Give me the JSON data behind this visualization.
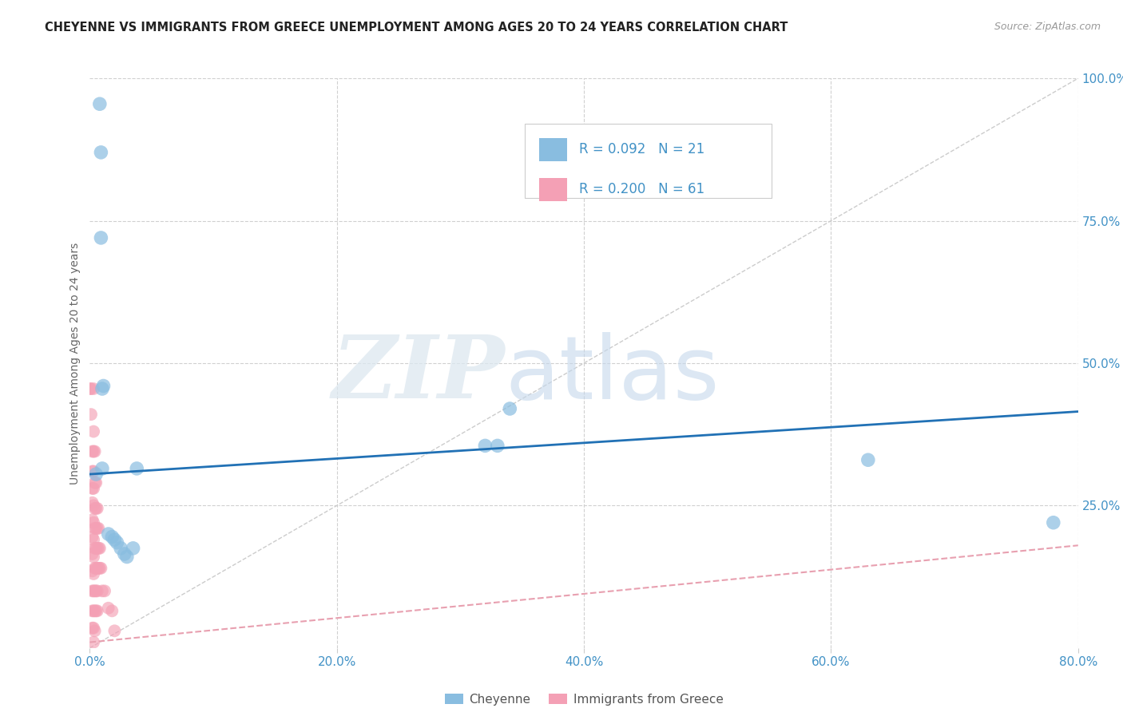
{
  "title": "CHEYENNE VS IMMIGRANTS FROM GREECE UNEMPLOYMENT AMONG AGES 20 TO 24 YEARS CORRELATION CHART",
  "source": "Source: ZipAtlas.com",
  "ylabel": "Unemployment Among Ages 20 to 24 years",
  "xlim": [
    0.0,
    0.8
  ],
  "ylim": [
    0.0,
    1.0
  ],
  "cheyenne_color": "#89bde0",
  "immigrants_color": "#f4a0b5",
  "cheyenne_label": "Cheyenne",
  "immigrants_label": "Immigrants from Greece",
  "R_cheyenne": "0.092",
  "N_cheyenne": "21",
  "R_immigrants": "0.200",
  "N_immigrants": "61",
  "legend_text_color": "#4292c6",
  "cheyenne_points": [
    [
      0.008,
      0.955
    ],
    [
      0.009,
      0.87
    ],
    [
      0.009,
      0.72
    ],
    [
      0.01,
      0.455
    ],
    [
      0.011,
      0.46
    ],
    [
      0.01,
      0.315
    ],
    [
      0.015,
      0.2
    ],
    [
      0.018,
      0.195
    ],
    [
      0.02,
      0.19
    ],
    [
      0.022,
      0.185
    ],
    [
      0.025,
      0.175
    ],
    [
      0.028,
      0.165
    ],
    [
      0.03,
      0.16
    ],
    [
      0.035,
      0.175
    ],
    [
      0.038,
      0.315
    ],
    [
      0.005,
      0.305
    ],
    [
      0.32,
      0.355
    ],
    [
      0.33,
      0.355
    ],
    [
      0.34,
      0.42
    ],
    [
      0.63,
      0.33
    ],
    [
      0.78,
      0.22
    ]
  ],
  "immigrants_points": [
    [
      0.0,
      0.455
    ],
    [
      0.001,
      0.455
    ],
    [
      0.001,
      0.41
    ],
    [
      0.002,
      0.345
    ],
    [
      0.002,
      0.31
    ],
    [
      0.002,
      0.28
    ],
    [
      0.002,
      0.255
    ],
    [
      0.002,
      0.225
    ],
    [
      0.002,
      0.195
    ],
    [
      0.002,
      0.165
    ],
    [
      0.002,
      0.135
    ],
    [
      0.002,
      0.1
    ],
    [
      0.002,
      0.065
    ],
    [
      0.002,
      0.035
    ],
    [
      0.003,
      0.455
    ],
    [
      0.003,
      0.38
    ],
    [
      0.003,
      0.345
    ],
    [
      0.003,
      0.31
    ],
    [
      0.003,
      0.28
    ],
    [
      0.003,
      0.25
    ],
    [
      0.003,
      0.22
    ],
    [
      0.003,
      0.19
    ],
    [
      0.003,
      0.16
    ],
    [
      0.003,
      0.13
    ],
    [
      0.003,
      0.1
    ],
    [
      0.003,
      0.065
    ],
    [
      0.003,
      0.035
    ],
    [
      0.003,
      0.01
    ],
    [
      0.004,
      0.345
    ],
    [
      0.004,
      0.29
    ],
    [
      0.004,
      0.245
    ],
    [
      0.004,
      0.21
    ],
    [
      0.004,
      0.175
    ],
    [
      0.004,
      0.14
    ],
    [
      0.004,
      0.1
    ],
    [
      0.004,
      0.065
    ],
    [
      0.004,
      0.03
    ],
    [
      0.005,
      0.29
    ],
    [
      0.005,
      0.245
    ],
    [
      0.005,
      0.21
    ],
    [
      0.005,
      0.175
    ],
    [
      0.005,
      0.14
    ],
    [
      0.005,
      0.1
    ],
    [
      0.005,
      0.065
    ],
    [
      0.006,
      0.245
    ],
    [
      0.006,
      0.21
    ],
    [
      0.006,
      0.175
    ],
    [
      0.006,
      0.14
    ],
    [
      0.006,
      0.1
    ],
    [
      0.006,
      0.065
    ],
    [
      0.007,
      0.21
    ],
    [
      0.007,
      0.175
    ],
    [
      0.007,
      0.14
    ],
    [
      0.008,
      0.175
    ],
    [
      0.008,
      0.14
    ],
    [
      0.009,
      0.14
    ],
    [
      0.01,
      0.1
    ],
    [
      0.012,
      0.1
    ],
    [
      0.015,
      0.07
    ],
    [
      0.018,
      0.065
    ],
    [
      0.02,
      0.03
    ]
  ],
  "blue_line_x": [
    0.0,
    0.8
  ],
  "blue_line_y": [
    0.305,
    0.415
  ],
  "pink_line_x": [
    0.0,
    0.8
  ],
  "pink_line_y": [
    0.01,
    0.18
  ],
  "diagonal_line_x": [
    0.0,
    0.8
  ],
  "diagonal_line_y": [
    0.0,
    1.0
  ],
  "watermark_zip": "ZIP",
  "watermark_atlas": "atlas",
  "background_color": "#ffffff",
  "grid_color": "#d0d0d0"
}
